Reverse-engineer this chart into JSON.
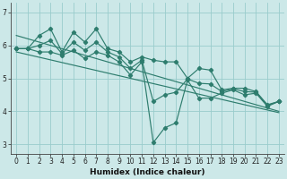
{
  "xlabel": "Humidex (Indice chaleur)",
  "xlim": [
    -0.5,
    23.5
  ],
  "ylim": [
    2.7,
    7.3
  ],
  "yticks": [
    3,
    4,
    5,
    6,
    7
  ],
  "xticks": [
    0,
    1,
    2,
    3,
    4,
    5,
    6,
    7,
    8,
    9,
    10,
    11,
    12,
    13,
    14,
    15,
    16,
    17,
    18,
    19,
    20,
    21,
    22,
    23
  ],
  "bg_color": "#cce8e8",
  "grid_color": "#99cccc",
  "line_color": "#2e7d6e",
  "series": {
    "max": [
      5.9,
      5.9,
      6.3,
      6.5,
      5.8,
      6.4,
      6.1,
      6.5,
      5.9,
      5.8,
      5.5,
      5.65,
      5.55,
      5.5,
      5.5,
      5.0,
      5.3,
      5.25,
      4.65,
      4.7,
      4.7,
      4.6,
      4.2,
      4.3
    ],
    "min": [
      5.9,
      5.9,
      5.8,
      5.8,
      5.7,
      5.85,
      5.6,
      5.8,
      5.7,
      5.5,
      5.1,
      5.5,
      3.05,
      3.5,
      3.65,
      4.95,
      4.4,
      4.4,
      4.55,
      4.65,
      4.5,
      4.55,
      4.15,
      4.3
    ],
    "mean": [
      5.9,
      5.9,
      6.0,
      6.15,
      5.75,
      6.1,
      5.85,
      6.1,
      5.8,
      5.65,
      5.3,
      5.55,
      4.3,
      4.5,
      4.58,
      4.98,
      4.85,
      4.83,
      4.6,
      4.68,
      4.6,
      4.58,
      4.18,
      4.3
    ],
    "trend_high": [
      6.3,
      6.2,
      6.1,
      6.0,
      5.9,
      5.8,
      5.7,
      5.6,
      5.5,
      5.4,
      5.3,
      5.2,
      5.1,
      5.0,
      4.9,
      4.8,
      4.7,
      4.6,
      4.5,
      4.4,
      4.3,
      4.2,
      4.1,
      4.0
    ],
    "trend_low": [
      5.8,
      5.72,
      5.64,
      5.56,
      5.48,
      5.4,
      5.32,
      5.24,
      5.16,
      5.08,
      5.0,
      4.92,
      4.84,
      4.76,
      4.68,
      4.6,
      4.52,
      4.44,
      4.36,
      4.28,
      4.2,
      4.12,
      4.04,
      3.96
    ]
  }
}
